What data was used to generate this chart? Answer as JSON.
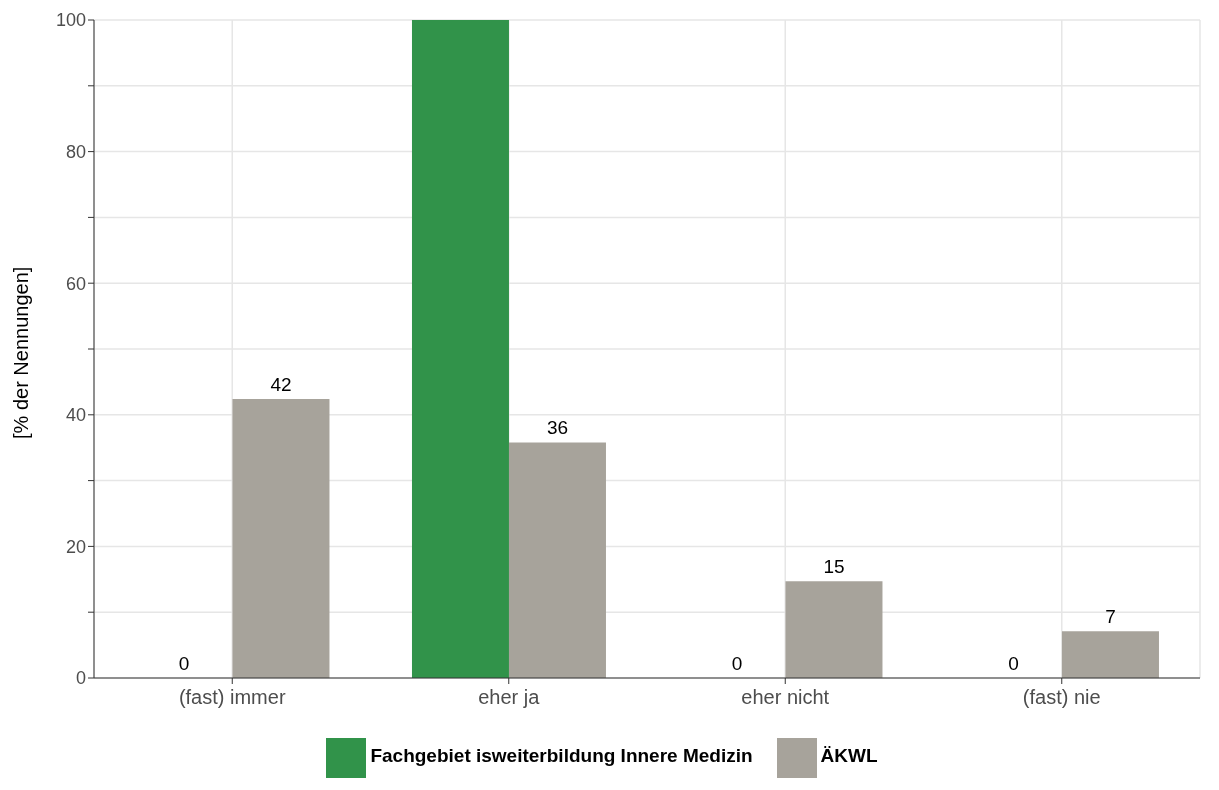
{
  "chart_data": {
    "type": "bar",
    "ylabel": "[% der Nennungen]",
    "categories": [
      "(fast) immer",
      "eher ja",
      "eher nicht",
      "(fast) nie"
    ],
    "series": [
      {
        "name": "Fachgebiet isweiterbildung Innere Medizin",
        "color": "#31934a",
        "values": [
          0,
          100,
          0,
          0
        ],
        "value_labels": [
          "0",
          null,
          "0",
          "0"
        ]
      },
      {
        "name": "ÄKWL",
        "color": "#a7a39b",
        "values": [
          42.4,
          35.8,
          14.7,
          7.1
        ],
        "value_labels": [
          "42",
          "36",
          "15",
          "7"
        ]
      }
    ],
    "ylim": [
      0,
      100
    ],
    "yticks": [
      0,
      {
        "value": 10,
        "label": null
      },
      20,
      {
        "value": 30,
        "label": null
      },
      40,
      {
        "value": 50,
        "label": null
      },
      60,
      {
        "value": 70,
        "label": null
      },
      80,
      {
        "value": 90,
        "label": null
      },
      100
    ],
    "grid": true,
    "legend": "bottom"
  }
}
